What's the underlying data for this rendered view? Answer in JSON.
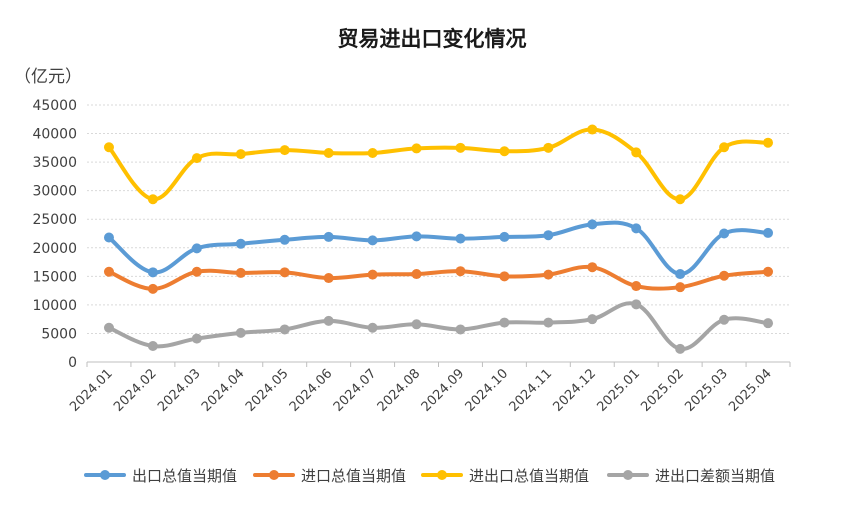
{
  "chart_data": {
    "type": "line",
    "title": "贸易进出口变化情况",
    "ylabel": "（亿元）",
    "xlabel": "",
    "ylim": [
      0,
      45000
    ],
    "yticks": [
      0,
      5000,
      10000,
      15000,
      20000,
      25000,
      30000,
      35000,
      40000,
      45000
    ],
    "grid": true,
    "legend_position": "bottom",
    "smooth": true,
    "categories": [
      "2024.01",
      "2024.02",
      "2024.03",
      "2024.04",
      "2024.05",
      "2024.06",
      "2024.07",
      "2024.08",
      "2024.09",
      "2024.10",
      "2024.11",
      "2024.12",
      "2025.01",
      "2025.02",
      "2025.03",
      "2025.04"
    ],
    "series": [
      {
        "name": "出口总值当期值",
        "color": "#5B9BD5",
        "values": [
          21800,
          15700,
          19900,
          20700,
          21400,
          21900,
          21300,
          22000,
          21600,
          21900,
          22200,
          24100,
          23400,
          15400,
          22500,
          22600
        ]
      },
      {
        "name": "进口总值当期值",
        "color": "#ED7D31",
        "values": [
          15800,
          12800,
          15800,
          15600,
          15700,
          14700,
          15300,
          15400,
          15900,
          15000,
          15300,
          16600,
          13300,
          13100,
          15100,
          15800
        ]
      },
      {
        "name": "进出口总值当期值",
        "color": "#FFC000",
        "values": [
          37600,
          28500,
          35700,
          36400,
          37100,
          36600,
          36600,
          37400,
          37500,
          36900,
          37500,
          40700,
          36700,
          28500,
          37600,
          38400
        ]
      },
      {
        "name": "进出口差额当期值",
        "color": "#A5A5A5",
        "values": [
          6000,
          2800,
          4100,
          5100,
          5700,
          7200,
          6000,
          6600,
          5700,
          6900,
          6900,
          7500,
          10100,
          2300,
          7400,
          6800
        ]
      }
    ]
  }
}
